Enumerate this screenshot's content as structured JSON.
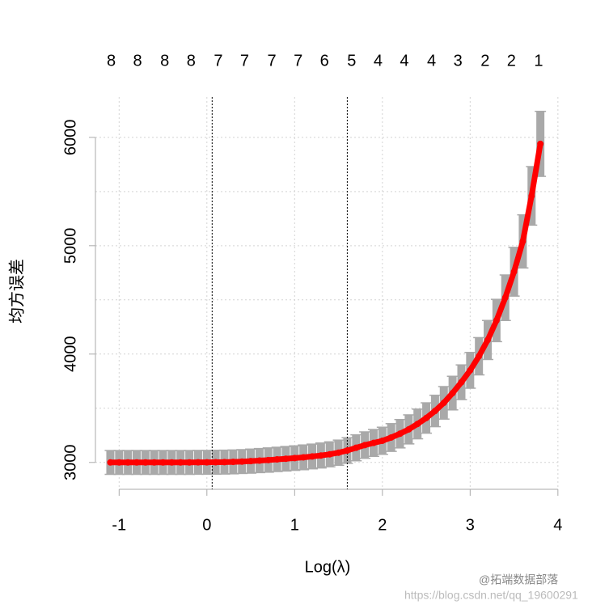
{
  "chart_data": {
    "type": "scatter",
    "xlabel": "Log(λ)",
    "ylabel": "均方误差",
    "x": [
      -1.1,
      -1.0,
      -0.9,
      -0.8,
      -0.7,
      -0.6,
      -0.5,
      -0.4,
      -0.3,
      -0.2,
      -0.1,
      0.0,
      0.1,
      0.2,
      0.3,
      0.4,
      0.5,
      0.6,
      0.7,
      0.8,
      0.9,
      1.0,
      1.1,
      1.2,
      1.3,
      1.4,
      1.5,
      1.6,
      1.7,
      1.8,
      1.9,
      2.0,
      2.1,
      2.2,
      2.3,
      2.4,
      2.5,
      2.6,
      2.7,
      2.8,
      2.9,
      3.0,
      3.1,
      3.2,
      3.3,
      3.4,
      3.5,
      3.6,
      3.7,
      3.8
    ],
    "values": [
      3000,
      3000,
      3000,
      3000,
      3000,
      3000,
      3000,
      3000,
      3000,
      3000,
      3001,
      3001,
      3002,
      3003,
      3005,
      3008,
      3012,
      3017,
      3022,
      3028,
      3034,
      3040,
      3047,
      3055,
      3064,
      3075,
      3090,
      3110,
      3135,
      3160,
      3180,
      3200,
      3230,
      3265,
      3305,
      3355,
      3410,
      3475,
      3550,
      3640,
      3740,
      3850,
      3980,
      4130,
      4310,
      4520,
      4760,
      5040,
      5460,
      5940
    ],
    "errors": [
      110,
      110,
      110,
      110,
      110,
      110,
      110,
      110,
      110,
      110,
      110,
      110,
      110,
      110,
      110,
      110,
      111,
      111,
      112,
      112,
      113,
      113,
      114,
      114,
      115,
      115,
      116,
      118,
      120,
      122,
      124,
      125,
      128,
      131,
      134,
      137,
      140,
      145,
      150,
      155,
      160,
      165,
      172,
      180,
      195,
      210,
      225,
      245,
      270,
      300
    ],
    "color": "#ff0000",
    "error_color": "#a9a9a9",
    "xlim": [
      -1.27,
      4.02
    ],
    "ylim": [
      2752,
      6372
    ],
    "xticks": [
      -1,
      0,
      1,
      2,
      3,
      4
    ],
    "yticks": [
      3000,
      4000,
      5000,
      6000
    ],
    "ygrid": [
      3000,
      3500,
      4000,
      4500,
      5000,
      5500,
      6000
    ],
    "grid": true,
    "vlines": [
      0.06,
      1.6
    ],
    "top_axis": {
      "x": [
        -1.09,
        -0.79,
        -0.48,
        -0.18,
        0.13,
        0.43,
        0.74,
        1.04,
        1.34,
        1.65,
        1.95,
        2.25,
        2.56,
        2.86,
        3.17,
        3.47,
        3.78
      ],
      "labels": [
        "8",
        "8",
        "8",
        "8",
        "7",
        "7",
        "7",
        "7",
        "6",
        "5",
        "4",
        "4",
        "4",
        "3",
        "2",
        "2",
        "1"
      ]
    },
    "watermark": [
      "@拓端数据部落",
      "https://blog.csdn.net/qq_19600291"
    ]
  }
}
